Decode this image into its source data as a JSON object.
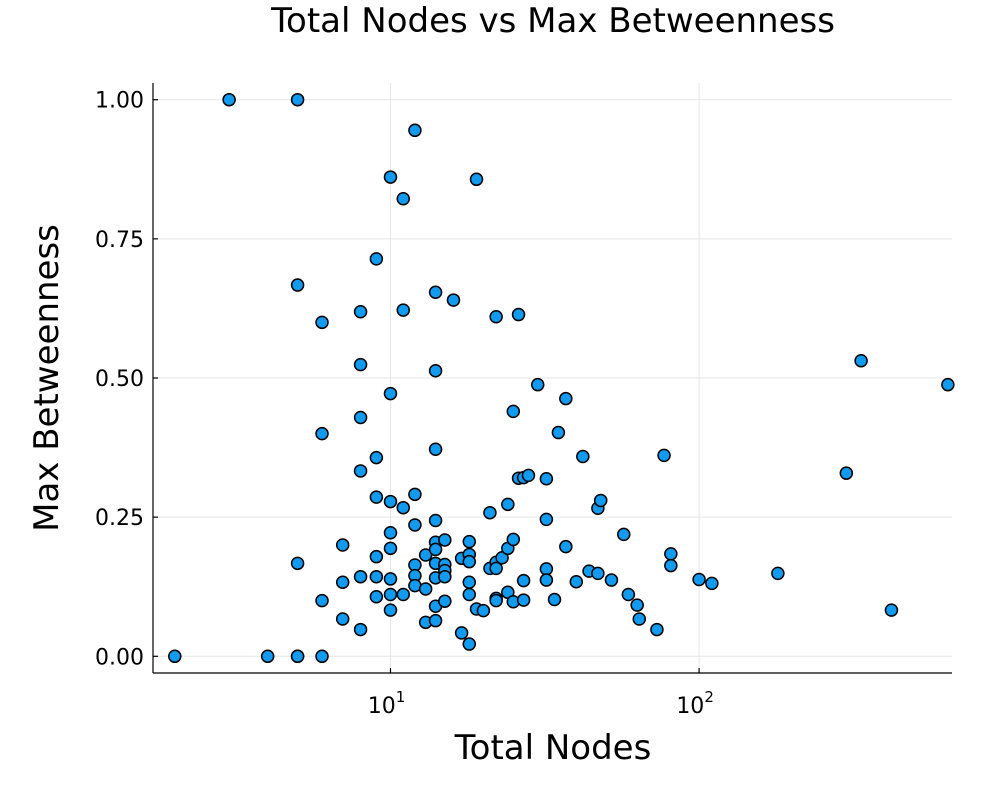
{
  "chart_data": {
    "type": "scatter",
    "title": "Total Nodes vs Max Betweenness",
    "xlabel": "Total Nodes",
    "ylabel": "Max Betweenness",
    "xscale": "log",
    "xlim": [
      1.7,
      660
    ],
    "ylim": [
      -0.03,
      1.03
    ],
    "xticks": [
      {
        "value": 10,
        "base": "10",
        "exp": "1"
      },
      {
        "value": 100,
        "base": "10",
        "exp": "2"
      }
    ],
    "yticks": [
      {
        "value": 0,
        "label": "0.00"
      },
      {
        "value": 0.25,
        "label": "0.25"
      },
      {
        "value": 0.5,
        "label": "0.50"
      },
      {
        "value": 0.75,
        "label": "0.75"
      },
      {
        "value": 1,
        "label": "1.00"
      }
    ],
    "grid": true,
    "legend": false,
    "marker_color": "#109bf0",
    "points": [
      [
        2,
        0
      ],
      [
        3,
        1
      ],
      [
        4,
        0
      ],
      [
        5,
        1
      ],
      [
        5,
        0.667
      ],
      [
        5,
        0.167
      ],
      [
        5,
        0
      ],
      [
        5,
        0
      ],
      [
        6,
        0.6
      ],
      [
        6,
        0.4
      ],
      [
        6,
        0.1
      ],
      [
        6,
        0
      ],
      [
        7,
        0.2
      ],
      [
        7,
        0.133
      ],
      [
        7,
        0.067
      ],
      [
        8,
        0.619
      ],
      [
        8,
        0.524
      ],
      [
        8,
        0.429
      ],
      [
        8,
        0.333
      ],
      [
        8,
        0.143
      ],
      [
        8,
        0.048
      ],
      [
        9,
        0.714
      ],
      [
        9,
        0.357
      ],
      [
        9,
        0.286
      ],
      [
        9,
        0.179
      ],
      [
        9,
        0.143
      ],
      [
        9,
        0.107
      ],
      [
        10,
        0.861
      ],
      [
        10,
        0.472
      ],
      [
        10,
        0.278
      ],
      [
        10,
        0.222
      ],
      [
        10,
        0.194
      ],
      [
        10,
        0.139
      ],
      [
        10,
        0.111
      ],
      [
        10,
        0.083
      ],
      [
        11,
        0.822
      ],
      [
        11,
        0.622
      ],
      [
        11,
        0.267
      ],
      [
        11,
        0.111
      ],
      [
        12,
        0.945
      ],
      [
        12,
        0.291
      ],
      [
        12,
        0.236
      ],
      [
        12,
        0.164
      ],
      [
        12,
        0.145
      ],
      [
        12,
        0.127
      ],
      [
        13,
        0.182
      ],
      [
        13,
        0.121
      ],
      [
        13,
        0.061
      ],
      [
        14,
        0.654
      ],
      [
        14,
        0.513
      ],
      [
        14,
        0.372
      ],
      [
        14,
        0.244
      ],
      [
        14,
        0.205
      ],
      [
        14,
        0.192
      ],
      [
        14,
        0.167
      ],
      [
        14,
        0.141
      ],
      [
        14,
        0.09
      ],
      [
        14,
        0.064
      ],
      [
        15,
        0.209
      ],
      [
        15,
        0.165
      ],
      [
        15,
        0.154
      ],
      [
        15,
        0.143
      ],
      [
        15,
        0.099
      ],
      [
        16,
        0.64
      ],
      [
        17,
        0.176
      ],
      [
        17,
        0.042
      ],
      [
        18,
        0.206
      ],
      [
        18,
        0.183
      ],
      [
        18,
        0.17
      ],
      [
        18,
        0.133
      ],
      [
        18,
        0.111
      ],
      [
        18,
        0.022
      ],
      [
        19,
        0.857
      ],
      [
        19,
        0.085
      ],
      [
        20,
        0.082
      ],
      [
        21,
        0.258
      ],
      [
        21,
        0.158
      ],
      [
        22,
        0.61
      ],
      [
        22,
        0.169
      ],
      [
        22,
        0.158
      ],
      [
        22,
        0.104
      ],
      [
        22,
        0.1
      ],
      [
        23,
        0.177
      ],
      [
        24,
        0.273
      ],
      [
        24,
        0.194
      ],
      [
        24,
        0.115
      ],
      [
        25,
        0.44
      ],
      [
        25,
        0.21
      ],
      [
        25,
        0.098
      ],
      [
        26,
        0.614
      ],
      [
        26,
        0.32
      ],
      [
        27,
        0.321
      ],
      [
        27,
        0.136
      ],
      [
        27,
        0.101
      ],
      [
        28,
        0.325
      ],
      [
        30,
        0.488
      ],
      [
        32,
        0.319
      ],
      [
        32,
        0.246
      ],
      [
        32,
        0.157
      ],
      [
        32,
        0.137
      ],
      [
        34,
        0.102
      ],
      [
        35,
        0.402
      ],
      [
        37,
        0.463
      ],
      [
        37,
        0.197
      ],
      [
        40,
        0.134
      ],
      [
        42,
        0.359
      ],
      [
        44,
        0.153
      ],
      [
        47,
        0.266
      ],
      [
        47,
        0.149
      ],
      [
        48,
        0.28
      ],
      [
        52,
        0.137
      ],
      [
        57,
        0.219
      ],
      [
        59,
        0.111
      ],
      [
        63,
        0.092
      ],
      [
        64,
        0.067
      ],
      [
        73,
        0.048
      ],
      [
        77,
        0.361
      ],
      [
        81,
        0.184
      ],
      [
        81,
        0.163
      ],
      [
        100,
        0.138
      ],
      [
        110,
        0.131
      ],
      [
        180,
        0.149
      ],
      [
        300,
        0.329
      ],
      [
        335,
        0.531
      ],
      [
        420,
        0.083
      ],
      [
        640,
        0.488
      ]
    ]
  }
}
